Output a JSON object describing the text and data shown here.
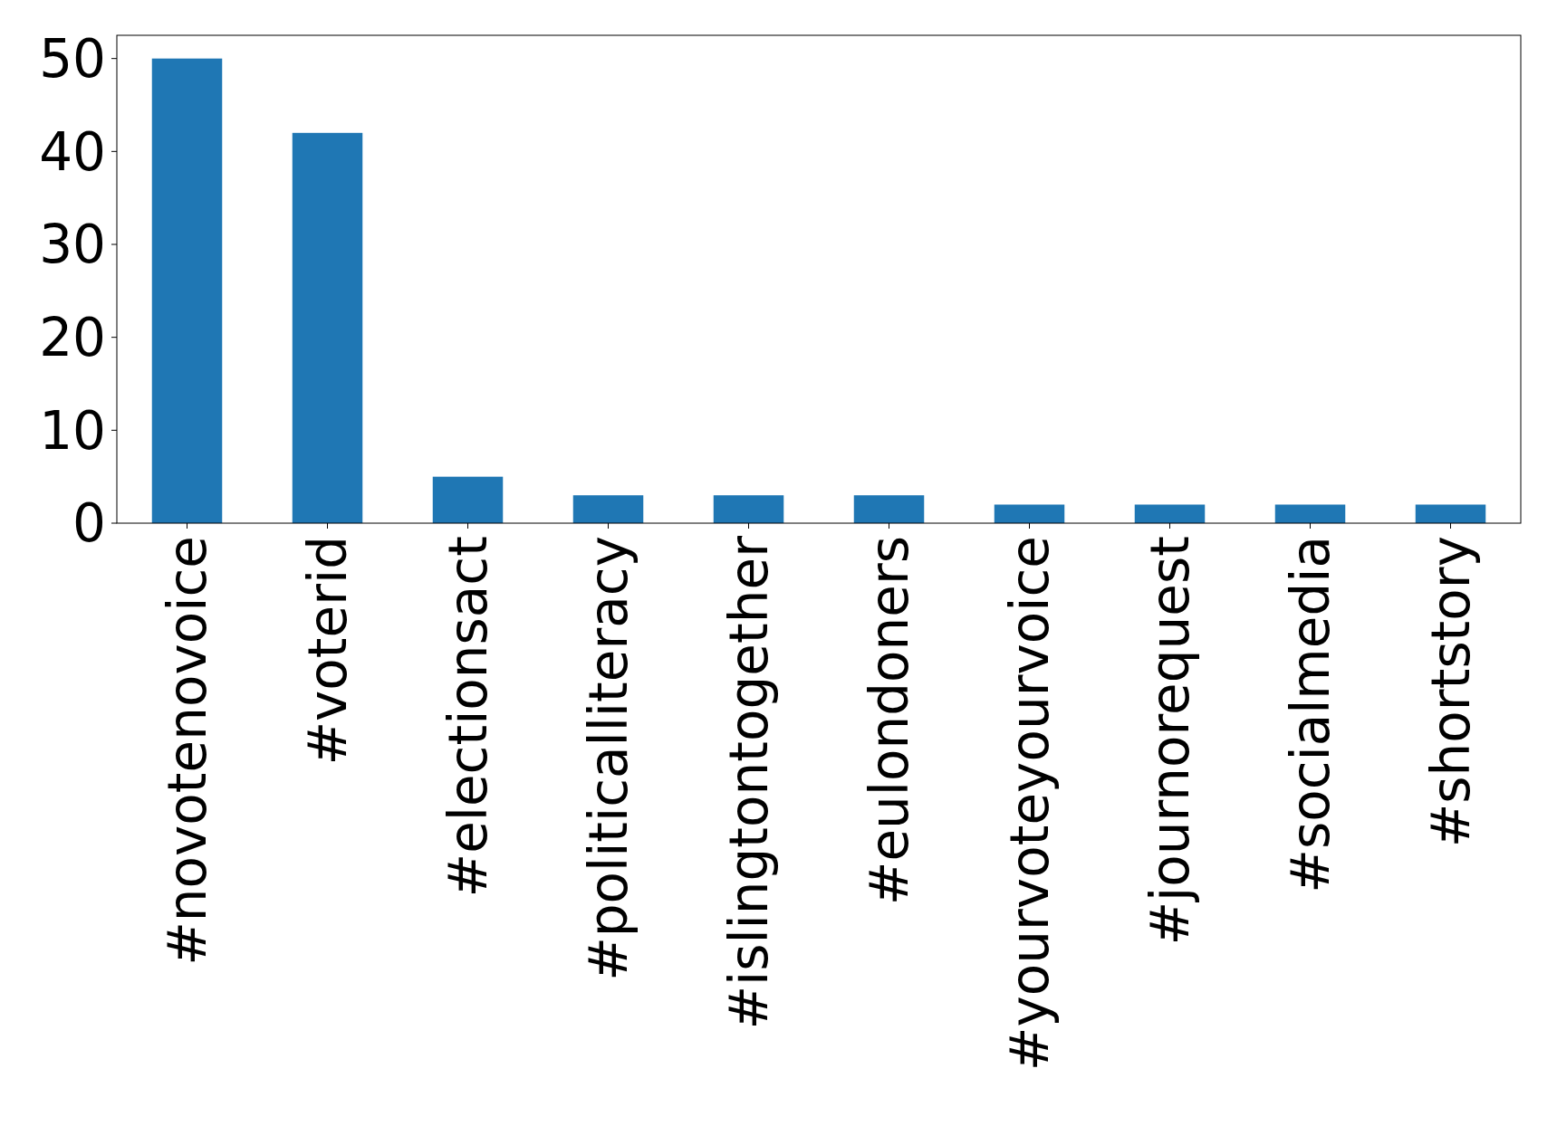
{
  "chart_data": {
    "type": "bar",
    "categories": [
      "#novotenovoice",
      "#voterid",
      "#electionsact",
      "#politicalliteracy",
      "#islingtontogether",
      "#eulondoners",
      "#yourvoteyourvoice",
      "#journorequest",
      "#socialmedia",
      "#shortstory"
    ],
    "values": [
      50,
      42,
      5,
      3,
      3,
      3,
      2,
      2,
      2,
      2
    ],
    "color": "#1f77b4",
    "ylim": [
      0,
      52.5
    ],
    "yticks": [
      0,
      10,
      20,
      30,
      40,
      50
    ],
    "grid": false
  }
}
